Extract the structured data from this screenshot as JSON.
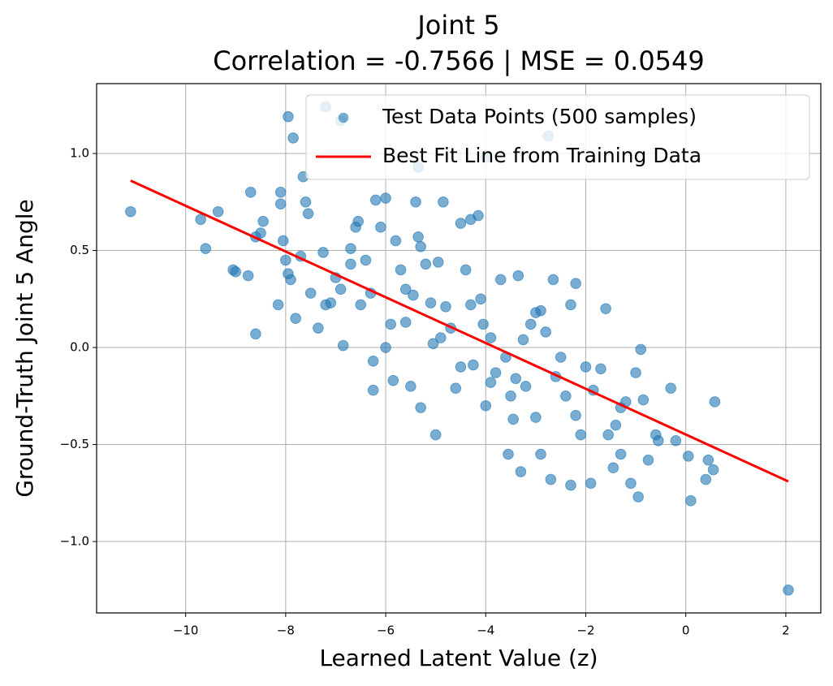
{
  "chart_data": {
    "type": "scatter",
    "title": "Joint 5",
    "subtitle": "Correlation = -0.7566 | MSE = 0.0549",
    "x_label": "Learned Latent Value (z)",
    "y_label": "Ground-Truth Joint 5 Angle",
    "xlim": [
      -11.78,
      2.7
    ],
    "ylim": [
      -1.368,
      1.36
    ],
    "xticks": [
      {
        "value": -10,
        "label": "−10"
      },
      {
        "value": -8,
        "label": "−8"
      },
      {
        "value": -6,
        "label": "−6"
      },
      {
        "value": -4,
        "label": "−4"
      },
      {
        "value": -2,
        "label": "−2"
      },
      0,
      2
    ],
    "yticks": [
      {
        "value": -1.0,
        "label": "−1.0"
      },
      {
        "value": -0.5,
        "label": "−0.5"
      },
      {
        "value": 0,
        "label": "0.0"
      },
      {
        "value": 0.5,
        "label": "0.5"
      },
      {
        "value": 1.0,
        "label": "1.0"
      }
    ],
    "grid": true,
    "legend": "upper right",
    "series": [
      {
        "name": "Test Data Points (500 samples)",
        "color": "#1f77b4",
        "x": [
          2.05,
          -11.1,
          -7.95,
          -7.2,
          -6.9,
          -7.85,
          -2.75,
          -5.35,
          -4.0,
          -9.7,
          -9.6,
          -9.35,
          -9.05,
          -9.0,
          -8.75,
          -8.7,
          -8.6,
          -8.6,
          -8.5,
          -8.45,
          -8.1,
          -8.1,
          -8.05,
          -8.0,
          -7.95,
          -7.9,
          -8.15,
          -7.8,
          -7.65,
          -7.6,
          -7.55,
          -7.5,
          -7.35,
          -7.25,
          -7.2,
          -7.1,
          -7.0,
          -6.9,
          -6.85,
          -6.7,
          -6.6,
          -6.55,
          -6.5,
          -6.4,
          -6.3,
          -6.25,
          -6.25,
          -6.2,
          -6.0,
          -6.1,
          -5.9,
          -5.85,
          -5.8,
          -5.7,
          -5.6,
          -5.5,
          -5.4,
          -5.35,
          -5.3,
          -5.3,
          -5.2,
          -5.1,
          -5.05,
          -5.0,
          -4.95,
          -4.85,
          -4.8,
          -4.7,
          -4.6,
          -4.5,
          -4.4,
          -4.3,
          -4.3,
          -4.25,
          -4.15,
          -4.1,
          -4.05,
          -4.0,
          -3.9,
          -3.8,
          -3.7,
          -3.6,
          -3.55,
          -3.45,
          -3.35,
          -3.3,
          -3.2,
          -3.1,
          -3.0,
          -2.9,
          -2.8,
          -2.7,
          -2.65,
          -2.5,
          -2.4,
          -2.3,
          -2.3,
          -2.2,
          -2.1,
          -2.0,
          -1.9,
          -1.85,
          -1.7,
          -1.6,
          -1.55,
          -1.45,
          -1.4,
          -1.3,
          -1.2,
          -1.1,
          -1.0,
          -0.95,
          -0.9,
          -0.85,
          -0.75,
          -0.6,
          -0.55,
          -0.3,
          -0.2,
          0.05,
          0.1,
          0.4,
          0.45,
          0.55,
          0.58,
          -3.4,
          -3.5,
          -3.0,
          -2.6,
          -4.5,
          -5.6,
          -6.7,
          -7.7,
          -3.9,
          -2.9,
          -4.9,
          -3.25,
          -2.2,
          -1.3,
          -6.0,
          -5.45
        ],
        "values": [
          -1.25,
          0.7,
          1.19,
          1.24,
          1.17,
          1.08,
          1.09,
          0.93,
          0.98,
          0.66,
          0.51,
          0.7,
          0.4,
          0.39,
          0.37,
          0.8,
          0.07,
          0.57,
          0.59,
          0.65,
          0.8,
          0.74,
          0.55,
          0.45,
          0.38,
          0.35,
          0.22,
          0.15,
          0.88,
          0.75,
          0.69,
          0.28,
          0.1,
          0.49,
          0.22,
          0.23,
          0.36,
          0.3,
          0.01,
          0.51,
          0.62,
          0.65,
          0.22,
          0.45,
          0.28,
          -0.07,
          -0.22,
          0.76,
          0.77,
          0.62,
          0.12,
          -0.17,
          0.55,
          0.4,
          0.3,
          -0.2,
          0.75,
          0.57,
          0.52,
          -0.31,
          0.43,
          0.23,
          0.02,
          -0.45,
          0.44,
          0.75,
          0.21,
          0.1,
          -0.21,
          0.64,
          0.4,
          0.66,
          0.22,
          -0.09,
          0.68,
          0.25,
          0.12,
          -0.3,
          0.05,
          -0.13,
          0.35,
          -0.05,
          -0.55,
          -0.37,
          0.37,
          -0.64,
          -0.2,
          0.12,
          -0.36,
          -0.55,
          0.08,
          -0.68,
          0.35,
          -0.05,
          -0.25,
          0.22,
          -0.71,
          0.33,
          -0.45,
          -0.1,
          -0.7,
          -0.22,
          -0.11,
          0.2,
          -0.45,
          -0.62,
          -0.4,
          -0.55,
          -0.28,
          -0.7,
          -0.13,
          -0.77,
          -0.01,
          -0.27,
          -0.58,
          -0.45,
          -0.48,
          -0.21,
          -0.48,
          -0.56,
          -0.79,
          -0.68,
          -0.58,
          -0.63,
          -0.28,
          -0.16,
          -0.25,
          0.18,
          -0.15,
          -0.1,
          0.13,
          0.43,
          0.47,
          -0.18,
          0.19,
          0.05,
          0.04,
          -0.35,
          -0.31,
          0.0,
          0.27
        ]
      },
      {
        "name": "Best Fit Line from Training Data",
        "color": "#ff0000",
        "type": "line",
        "x": [
          -11.1,
          2.05
        ],
        "values": [
          0.86,
          -0.69
        ]
      }
    ]
  }
}
